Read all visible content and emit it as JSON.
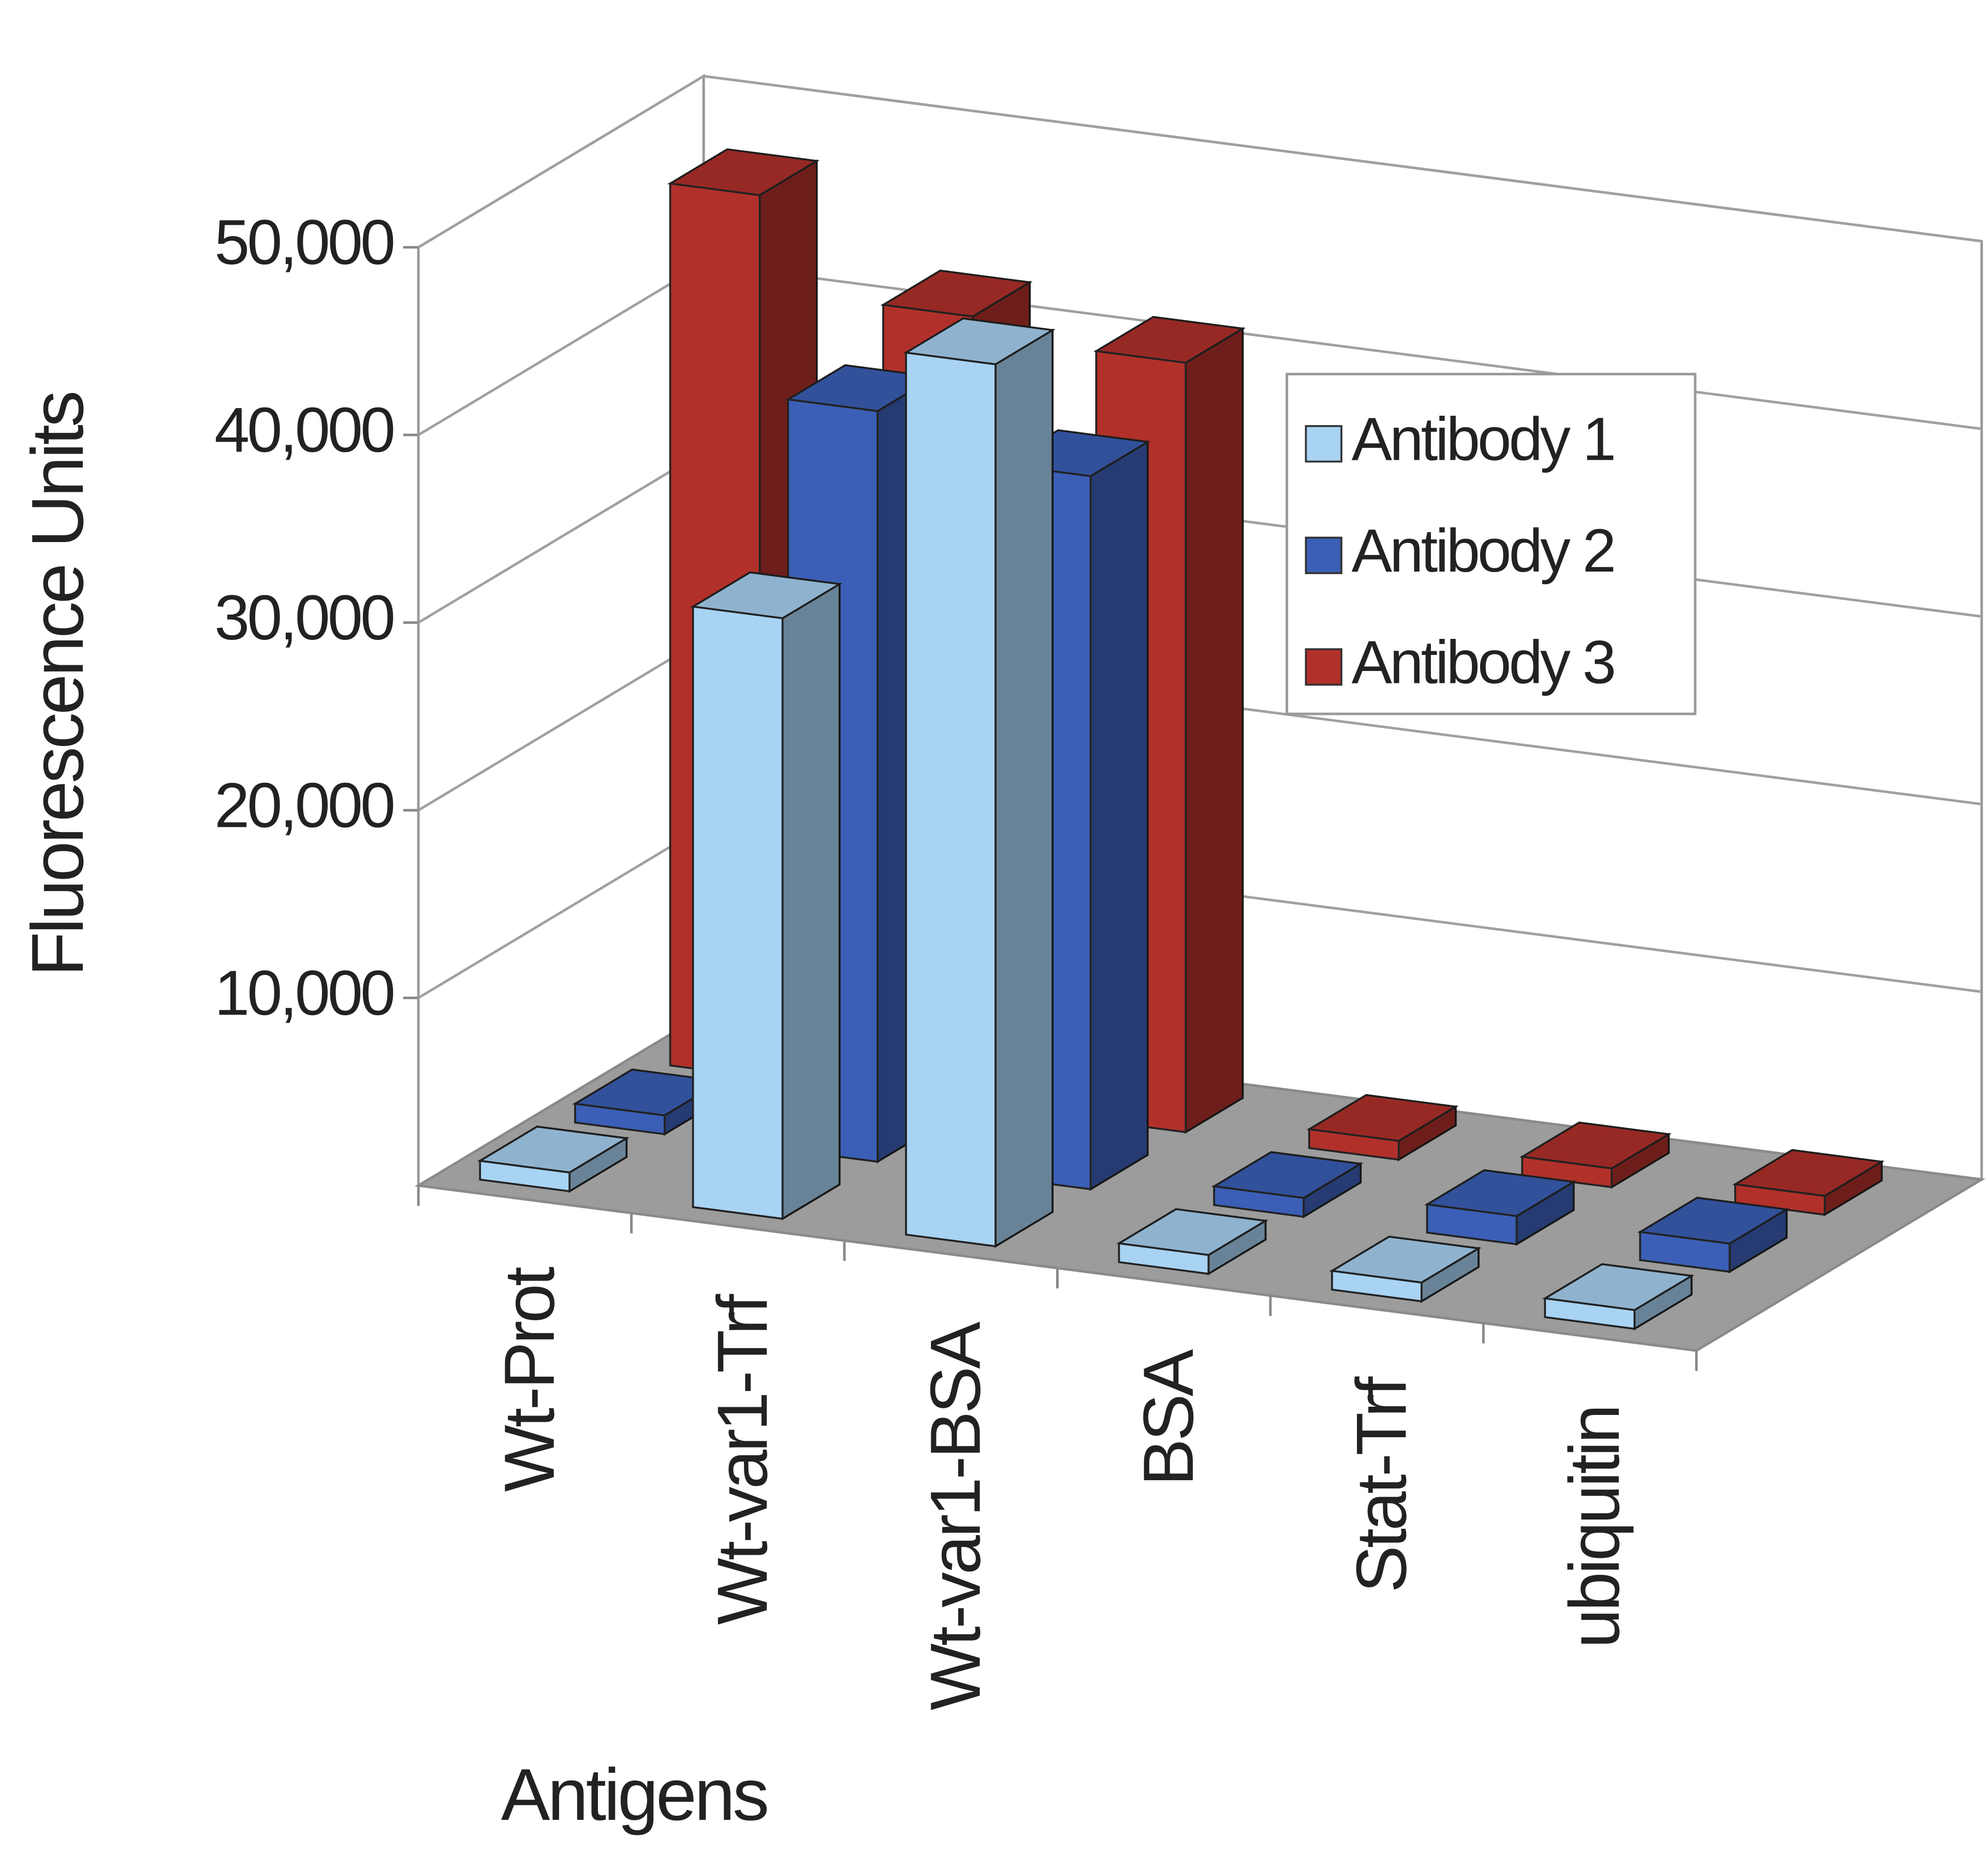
{
  "chart_data": {
    "type": "bar",
    "xlabel": "Antigens",
    "ylabel": "Fluorescence Units",
    "categories": [
      "Wt-Prot",
      "Wt-var1-Trf",
      "Wt-var1-BSA",
      "BSA",
      "Stat-Trf",
      "ubiquitin"
    ],
    "series": [
      {
        "name": "Antibody 1",
        "color": "#a8d3f3",
        "values": [
          1000,
          32000,
          47000,
          1000,
          1000,
          1000
        ]
      },
      {
        "name": "Antibody 2",
        "color": "#3b5fb6",
        "values": [
          1000,
          40000,
          38000,
          1000,
          1500,
          1500
        ]
      },
      {
        "name": "Antibody 3",
        "color": "#b2302a",
        "values": [
          47000,
          42000,
          41000,
          1000,
          1000,
          1000
        ]
      }
    ],
    "ylim": [
      0,
      50000
    ],
    "yticks": [
      {
        "value": 10000,
        "label": "10,000"
      },
      {
        "value": 20000,
        "label": "20,000"
      },
      {
        "value": 30000,
        "label": "30,000"
      },
      {
        "value": 40000,
        "label": "40,000"
      },
      {
        "value": 50000,
        "label": "50,000"
      }
    ],
    "grid": true
  }
}
